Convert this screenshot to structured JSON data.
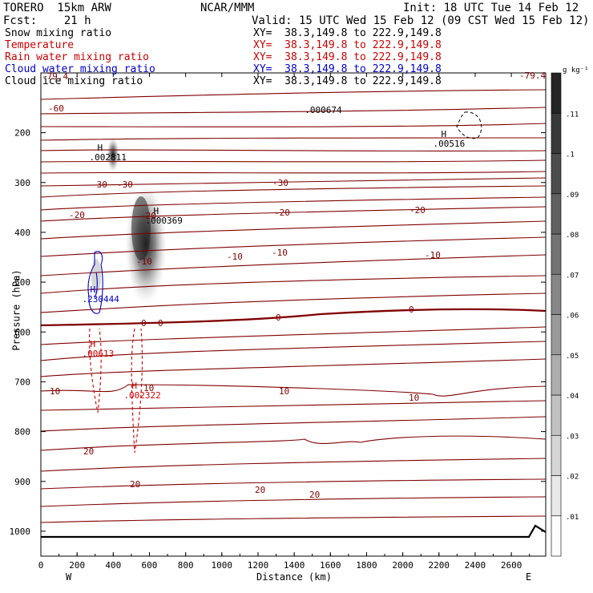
{
  "header": {
    "model": "TORERO  15km ARW",
    "org": "NCAR/MMM",
    "init": "Init: 18 UTC Tue 14 Feb 12",
    "fcst": "Fcst:    21 h",
    "valid": "Valid: 15 UTC Wed 15 Feb 12 (09 CST Wed 15 Feb 12)"
  },
  "legend": [
    {
      "label": "Snow mixing ratio",
      "xy": "XY=  38.3,149.8 to 222.9,149.8",
      "color": "#000000"
    },
    {
      "label": "Temperature",
      "xy": "XY=  38.3,149.8 to 222.9,149.8",
      "color": "#cc0000"
    },
    {
      "label": "Rain water mixing ratio",
      "xy": "XY=  38.3,149.8 to 222.9,149.8",
      "color": "#cc0000"
    },
    {
      "label": "Cloud water mixing ratio",
      "xy": "XY=  38.3,149.8 to 222.9,149.8",
      "color": "#0000cc"
    },
    {
      "label": "Cloud ice mixing ratio",
      "xy": "XY=  38.3,149.8 to 222.9,149.8",
      "color": "#000000"
    }
  ],
  "chart_data": {
    "type": "cross-section",
    "xlabel": "Distance (km)",
    "ylabel": "Pressure (hPa)",
    "x_ticks": [
      "0",
      "200",
      "400",
      "600",
      "800",
      "1000",
      "1200",
      "1400",
      "1600",
      "1800",
      "2000",
      "2200",
      "2400",
      "2600"
    ],
    "y_ticks": [
      "200",
      "300",
      "400",
      "500",
      "600",
      "700",
      "800",
      "900",
      "1000"
    ],
    "xlim": [
      0,
      2790
    ],
    "ylim": [
      1050,
      80
    ],
    "west_label": "W",
    "east_label": "E",
    "colorbar": {
      "unit": "g kg⁻¹",
      "levels": [
        ".01",
        ".02",
        ".03",
        ".04",
        ".05",
        ".06",
        ".07",
        ".08",
        ".09",
        ".1",
        ".11"
      ]
    },
    "temperature_contours": [
      {
        "value": -60,
        "labels": [
          "-60"
        ]
      },
      {
        "value": -30,
        "labels": [
          "-30",
          "-30",
          "-30"
        ]
      },
      {
        "value": -20,
        "labels": [
          "-20",
          "-20",
          "-20",
          "-20"
        ]
      },
      {
        "value": -10,
        "labels": [
          "-10",
          "-10",
          "-10",
          "-10"
        ]
      },
      {
        "value": 0,
        "labels": [
          "0",
          "0",
          "0",
          "0"
        ]
      },
      {
        "value": 10,
        "labels": [
          "10",
          "10",
          "10",
          "10"
        ]
      },
      {
        "value": 20,
        "labels": [
          "20",
          "20",
          "20",
          "20"
        ]
      }
    ],
    "field_extrema": [
      {
        "mark": "H",
        "value": ".002811",
        "x_km": 330,
        "p": 245,
        "color": "#000000"
      },
      {
        "mark": "H",
        "value": ".000369",
        "x_km": 640,
        "p": 372,
        "color": "#000000"
      },
      {
        "mark": "H",
        "value": ".00516",
        "x_km": 2230,
        "p": 218,
        "color": "#000000"
      },
      {
        "value": ".000674",
        "x_km": 1520,
        "p": 151,
        "color": "#000000"
      },
      {
        "mark": "H",
        "value": ".230444",
        "x_km": 290,
        "p": 530,
        "color": "#0000cc"
      },
      {
        "mark": "H",
        "value": ".00613",
        "x_km": 290,
        "p": 640,
        "color": "#cc0000"
      },
      {
        "mark": "H",
        "value": ".002322",
        "x_km": 520,
        "p": 724,
        "color": "#cc0000"
      }
    ],
    "min_labels": [
      {
        "value": "-79.4",
        "position": "top-left"
      },
      {
        "value": "-79.4",
        "position": "top-right"
      }
    ]
  }
}
